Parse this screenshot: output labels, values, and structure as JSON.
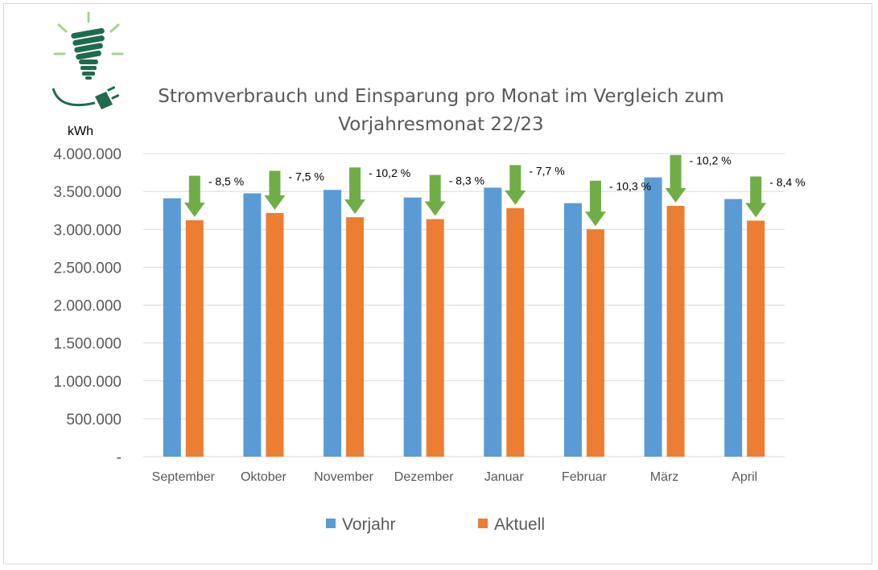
{
  "logo": {
    "icon": "energy-saving-bulb-plug-icon",
    "bulb_color": "#1f6b4f",
    "ray_color": "#a9d18e"
  },
  "chart_data": {
    "type": "bar",
    "title_line1": "Stromverbrauch und Einsparung pro Monat im Vergleich zum",
    "title_line2": "Vorjahresmonat 22/23",
    "unit": "kWh",
    "categories": [
      "September",
      "Oktober",
      "November",
      "Dezember",
      "Januar",
      "Februar",
      "März",
      "April"
    ],
    "series": [
      {
        "name": "Vorjahr",
        "color": "#5b9bd5",
        "values": [
          3410000,
          3475000,
          3520000,
          3420000,
          3550000,
          3345000,
          3685000,
          3400000
        ]
      },
      {
        "name": "Aktuell",
        "color": "#ed7d31",
        "values": [
          3120000,
          3215000,
          3160000,
          3135000,
          3280000,
          3000000,
          3310000,
          3115000
        ]
      }
    ],
    "savings_labels": [
      "- 8,5 %",
      "- 7,5 %",
      "- 10,2 %",
      "- 8,3 %",
      "- 7,7 %",
      "- 10,3 %",
      "- 10,2 %",
      "- 8,4 %"
    ],
    "arrow_color": "#70ad47",
    "yticks": [
      {
        "value": 0,
        "label": "-"
      },
      {
        "value": 500000,
        "label": "500.000"
      },
      {
        "value": 1000000,
        "label": "1.000.000"
      },
      {
        "value": 1500000,
        "label": "1.500.000"
      },
      {
        "value": 2000000,
        "label": "2.000.000"
      },
      {
        "value": 2500000,
        "label": "2.500.000"
      },
      {
        "value": 3000000,
        "label": "3.000.000"
      },
      {
        "value": 3500000,
        "label": "3.500.000"
      },
      {
        "value": 4000000,
        "label": "4.000.000"
      }
    ],
    "ylim": [
      0,
      4000000
    ],
    "grid": true,
    "legend_position": "bottom"
  }
}
